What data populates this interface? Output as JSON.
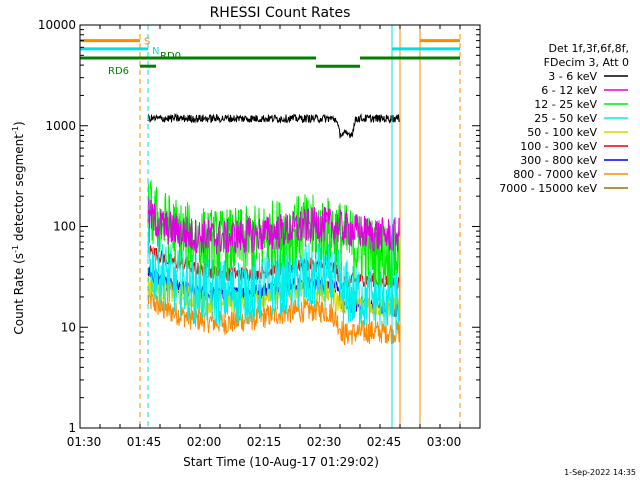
{
  "chart_data": {
    "type": "line",
    "title": "RHESSI Count Rates",
    "xlabel": "Start Time (10-Aug-17 01:29:02)",
    "ylabel": "Count Rate (s",
    "ylabel_sup1": "-1",
    "ylabel_mid": " detector segment",
    "ylabel_sup2": "-1",
    "ylabel_end": ")",
    "yscale": "log",
    "xlim": [
      "01:29",
      "03:09"
    ],
    "ylim": [
      1,
      10000
    ],
    "x_ticks": [
      "01:30",
      "01:45",
      "02:00",
      "02:15",
      "02:30",
      "02:45",
      "03:00"
    ],
    "y_ticks": [
      "1",
      "10",
      "100",
      "1000",
      "10000"
    ],
    "legend": {
      "placement": "right",
      "header": [
        "Det 1f,3f,6f,8f,",
        "FDecim 3, Att 0"
      ],
      "entries": [
        {
          "label": "3 - 6 keV",
          "color": "#000000"
        },
        {
          "label": "6 - 12 keV",
          "color": "#e000e0"
        },
        {
          "label": "12 - 25 keV",
          "color": "#00ee00"
        },
        {
          "label": "25 - 50 keV",
          "color": "#00eeee"
        },
        {
          "label": "50 - 100 keV",
          "color": "#d8d800"
        },
        {
          "label": "100 - 300 keV",
          "color": "#ee0000"
        },
        {
          "label": "300 - 800 keV",
          "color": "#0000ee"
        },
        {
          "label": "800 - 7000 keV",
          "color": "#ff8800"
        },
        {
          "label": "7000 - 15000 keV",
          "color": "#a07000"
        }
      ]
    },
    "series": [
      {
        "name": "3 - 6 keV",
        "color": "#000000",
        "noise": 0.04,
        "points": [
          [
            "01:46",
            1180
          ],
          [
            "02:31",
            1180
          ],
          [
            "02:33",
            1160
          ],
          [
            "02:34",
            820
          ],
          [
            "02:37",
            830
          ],
          [
            "02:38",
            1180
          ],
          [
            "02:49",
            1180
          ],
          [
            "02:49",
            600
          ]
        ]
      },
      {
        "name": "6 - 12 keV",
        "color": "#e000e0",
        "noise": 0.18,
        "points": [
          [
            "01:46",
            130
          ],
          [
            "01:50",
            100
          ],
          [
            "01:57",
            82
          ],
          [
            "02:03",
            78
          ],
          [
            "02:10",
            80
          ],
          [
            "02:18",
            88
          ],
          [
            "02:25",
            100
          ],
          [
            "02:29",
            105
          ],
          [
            "02:33",
            100
          ],
          [
            "02:38",
            90
          ],
          [
            "02:44",
            82
          ],
          [
            "02:49",
            82
          ]
        ]
      },
      {
        "name": "12 - 25 keV",
        "color": "#00ee00",
        "noise": 0.35,
        "points": [
          [
            "01:46",
            140
          ],
          [
            "01:49",
            110
          ],
          [
            "01:55",
            80
          ],
          [
            "02:02",
            68
          ],
          [
            "02:10",
            70
          ],
          [
            "02:18",
            85
          ],
          [
            "02:25",
            95
          ],
          [
            "02:29",
            92
          ],
          [
            "02:33",
            88
          ],
          [
            "02:38",
            65
          ],
          [
            "02:44",
            55
          ],
          [
            "02:49",
            52
          ]
        ]
      },
      {
        "name": "25 - 50 keV",
        "color": "#00eeee",
        "noise": 0.35,
        "points": [
          [
            "01:46",
            45
          ],
          [
            "01:50",
            32
          ],
          [
            "01:58",
            24
          ],
          [
            "02:05",
            22
          ],
          [
            "02:12",
            24
          ],
          [
            "02:20",
            30
          ],
          [
            "02:28",
            32
          ],
          [
            "02:33",
            30
          ],
          [
            "02:35",
            22
          ],
          [
            "02:40",
            20
          ],
          [
            "02:45",
            20
          ],
          [
            "02:49",
            18
          ]
        ]
      },
      {
        "name": "50 - 100 keV",
        "color": "#d8d800",
        "noise": 0.12,
        "points": [
          [
            "01:46",
            26
          ],
          [
            "01:52",
            22
          ],
          [
            "02:00",
            18
          ],
          [
            "02:08",
            18
          ],
          [
            "02:16",
            21
          ],
          [
            "02:25",
            23
          ],
          [
            "02:32",
            22
          ],
          [
            "02:33",
            18
          ],
          [
            "02:40",
            17
          ],
          [
            "02:49",
            16
          ]
        ]
      },
      {
        "name": "100 - 300 keV",
        "color": "#ee0000",
        "noise": 0.07,
        "points": [
          [
            "01:46",
            60
          ],
          [
            "01:50",
            48
          ],
          [
            "01:58",
            38
          ],
          [
            "02:05",
            34
          ],
          [
            "02:12",
            34
          ],
          [
            "02:20",
            38
          ],
          [
            "02:26",
            42
          ],
          [
            "02:31",
            40
          ],
          [
            "02:33",
            38
          ],
          [
            "02:34",
            28
          ],
          [
            "02:40",
            30
          ],
          [
            "02:49",
            28
          ]
        ]
      },
      {
        "name": "300 - 800 keV",
        "color": "#0000ee",
        "noise": 0.08,
        "points": [
          [
            "01:46",
            35
          ],
          [
            "01:50",
            28
          ],
          [
            "01:58",
            22
          ],
          [
            "02:05",
            21
          ],
          [
            "02:12",
            22
          ],
          [
            "02:20",
            26
          ],
          [
            "02:28",
            27
          ],
          [
            "02:32",
            26
          ],
          [
            "02:33",
            24
          ],
          [
            "02:35",
            16
          ],
          [
            "02:40",
            17
          ],
          [
            "02:49",
            15
          ]
        ]
      },
      {
        "name": "800 - 7000 keV",
        "color": "#ff8800",
        "noise": 0.12,
        "points": [
          [
            "01:46",
            19
          ],
          [
            "01:50",
            15
          ],
          [
            "01:58",
            12
          ],
          [
            "02:05",
            11
          ],
          [
            "02:12",
            12
          ],
          [
            "02:20",
            14
          ],
          [
            "02:28",
            15
          ],
          [
            "02:32",
            14
          ],
          [
            "02:33",
            12
          ],
          [
            "02:35",
            8.5
          ],
          [
            "02:40",
            9
          ],
          [
            "02:49",
            9
          ]
        ]
      }
    ],
    "vlines": [
      {
        "time": "01:29",
        "color": "#00e0e0",
        "style": "solid"
      },
      {
        "time": "01:44",
        "color": "#ff8800",
        "style": "dashed"
      },
      {
        "time": "01:46",
        "color": "#00e0e0",
        "style": "dashed"
      },
      {
        "time": "02:47",
        "color": "#00e0e0",
        "style": "solid"
      },
      {
        "time": "02:49",
        "color": "#ff8800",
        "style": "solid"
      },
      {
        "time": "02:54",
        "color": "#ff8800",
        "style": "solid"
      },
      {
        "time": "03:04",
        "color": "#ff8800",
        "style": "dashed"
      }
    ],
    "flag_bars": [
      {
        "label": "S",
        "color": "#ff8800",
        "y": 7000,
        "segments": [
          [
            "01:29",
            "01:44"
          ],
          [
            "02:54",
            "03:04"
          ]
        ]
      },
      {
        "label": "N",
        "color": "#00e0e0",
        "y": 5800,
        "segments": [
          [
            "01:29",
            "01:46"
          ],
          [
            "02:47",
            "03:04"
          ]
        ]
      },
      {
        "label": "RD0",
        "color": "#008000",
        "y": 4700,
        "segments": [
          [
            "01:29",
            "02:28"
          ],
          [
            "02:39",
            "03:04"
          ]
        ]
      },
      {
        "label": "RD6",
        "color": "#008000",
        "y": 3900,
        "segments": [
          [
            "01:44",
            "01:48"
          ],
          [
            "02:28",
            "02:39"
          ]
        ]
      }
    ],
    "timestamp": "1-Sep-2022 14:35"
  }
}
